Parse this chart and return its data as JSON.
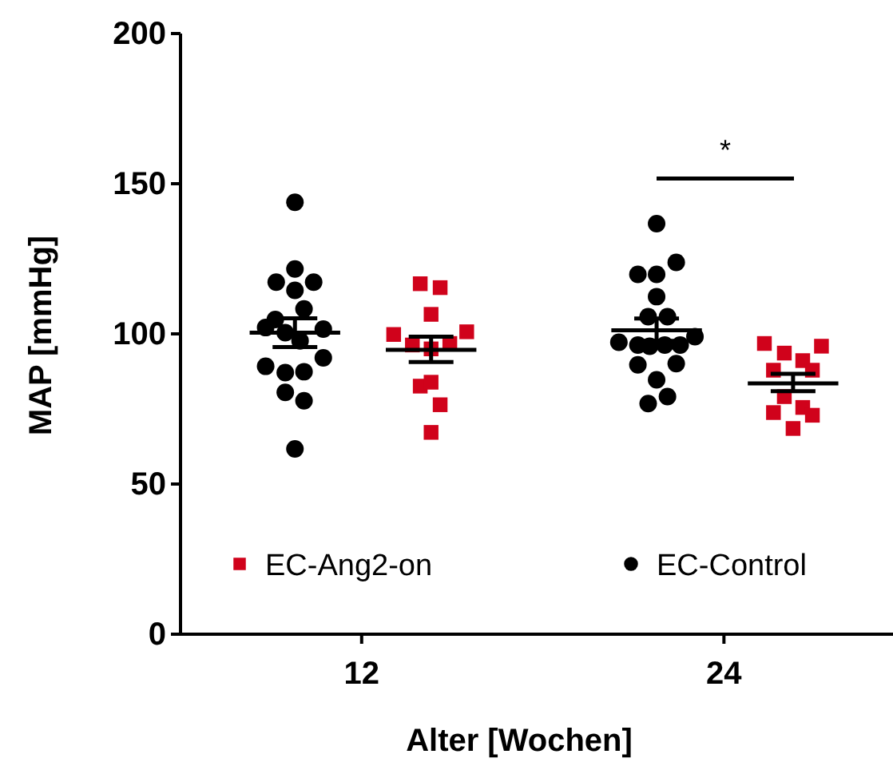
{
  "chart_data": {
    "type": "scatter",
    "xlabel": "Alter [Wochen]",
    "ylabel": "MAP [mmHg]",
    "xlim": [
      6,
      29.6
    ],
    "xticks": [
      12,
      24
    ],
    "ylim": [
      0,
      200
    ],
    "yticks": [
      0,
      50,
      100,
      150,
      200
    ],
    "grid": false,
    "legend": "bottom",
    "series": [
      {
        "name": "EC-Ang2-on",
        "color": "#d0021b",
        "marker": "square",
        "x": [
          13.94,
          14.6,
          14.3,
          13.06,
          15.48,
          13.68,
          14.92,
          14.3,
          13.94,
          14.3,
          14.6,
          14.3,
          25.34,
          27.23,
          26.0,
          26.61,
          25.64,
          26.93,
          26.0,
          25.64,
          26.61,
          26.93,
          26.29
        ],
        "values": [
          116.7,
          115.4,
          106.5,
          99.8,
          100.7,
          96.3,
          96.8,
          95.0,
          82.6,
          83.9,
          76.4,
          67.2,
          96.8,
          95.9,
          93.6,
          91.1,
          87.9,
          87.9,
          79.1,
          73.8,
          75.5,
          72.9,
          68.5
        ]
      },
      {
        "name": "EC-Control",
        "color": "#000000",
        "marker": "circle",
        "x": [
          9.79,
          9.79,
          9.17,
          10.41,
          9.79,
          10.09,
          9.14,
          8.82,
          9.47,
          10.73,
          9.96,
          10.73,
          8.82,
          9.47,
          10.09,
          9.47,
          10.09,
          9.79,
          21.77,
          21.15,
          21.77,
          22.42,
          21.77,
          21.49,
          22.13,
          20.52,
          21.15,
          21.54,
          22.04,
          22.55,
          23.04,
          21.15,
          22.42,
          21.77,
          21.49,
          22.13
        ],
        "values": [
          143.8,
          121.6,
          117.2,
          117.2,
          114.5,
          108.3,
          104.8,
          102.1,
          100.4,
          101.6,
          97.7,
          92.0,
          89.2,
          87.1,
          87.4,
          80.5,
          77.7,
          61.7,
          136.7,
          119.8,
          119.8,
          123.8,
          112.4,
          105.7,
          105.7,
          97.2,
          96.3,
          95.9,
          96.3,
          96.3,
          99.1,
          89.7,
          90.1,
          84.7,
          76.8,
          79.1
        ]
      },
      {
        "type": "line",
        "color": "#000000",
        "x": [
          8.29,
          9.79,
          11.29
        ],
        "values": [
          100.4,
          100.4,
          100.4
        ],
        "errors": [
          null,
          [
            95.6,
            105.2
          ],
          null
        ]
      },
      {
        "type": "line",
        "color": "#000000",
        "x": [
          12.8,
          14.3,
          15.8
        ],
        "values": [
          94.7,
          94.7,
          94.7
        ],
        "errors": [
          null,
          [
            90.6,
            99.1
          ],
          null
        ]
      },
      {
        "type": "line",
        "color": "#000000",
        "x": [
          20.27,
          21.77,
          23.27
        ],
        "values": [
          101.2,
          101.2,
          101.2
        ],
        "errors": [
          null,
          [
            97.7,
            105.1
          ],
          null
        ]
      },
      {
        "type": "line",
        "color": "#000000",
        "x": [
          24.79,
          26.29,
          27.79
        ],
        "values": [
          83.5,
          83.5,
          83.5
        ],
        "errors": [
          null,
          [
            80.9,
            86.7
          ],
          null
        ]
      }
    ],
    "annotations": [
      "*"
    ]
  }
}
